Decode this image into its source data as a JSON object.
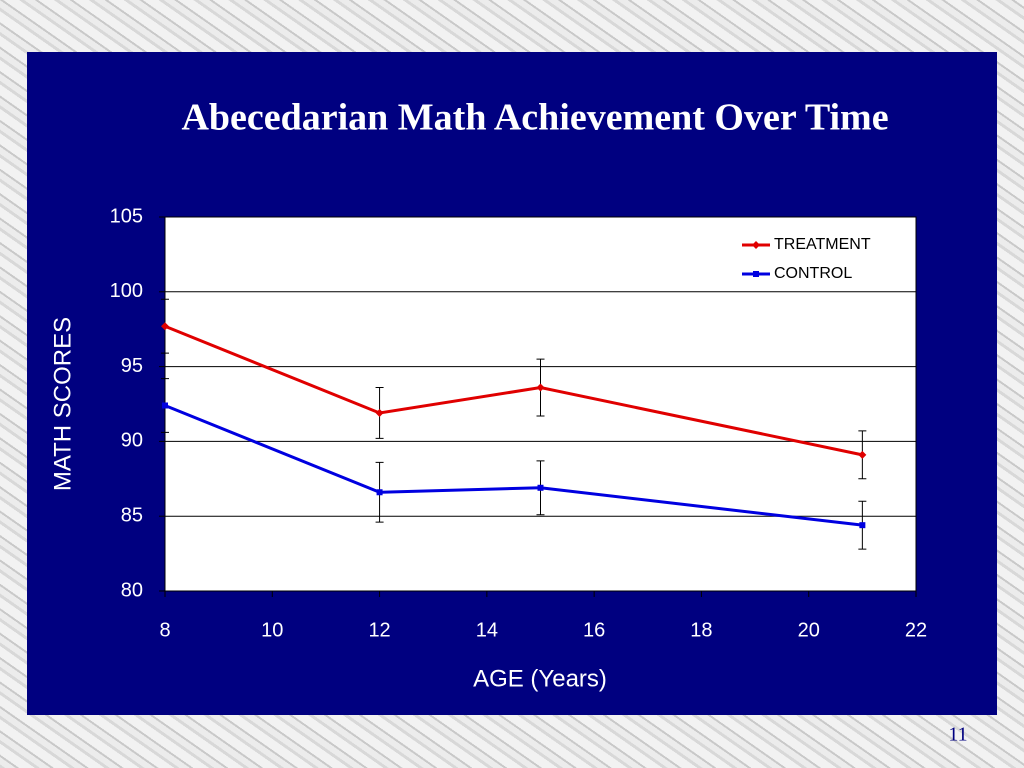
{
  "chart_data": {
    "type": "line",
    "title": "Abecedarian Math Achievement Over Time",
    "xlabel": "AGE (Years)",
    "ylabel": "MATH SCORES",
    "x": [
      8,
      12,
      15,
      21
    ],
    "series": [
      {
        "name": "TREATMENT",
        "color": "#e00000",
        "marker": "diamond",
        "values": [
          97.7,
          91.9,
          93.6,
          89.1
        ],
        "errors": [
          1.8,
          1.7,
          1.9,
          1.6
        ]
      },
      {
        "name": "CONTROL",
        "color": "#0000e0",
        "marker": "square",
        "values": [
          92.4,
          86.6,
          86.9,
          84.4
        ],
        "errors": [
          1.8,
          2.0,
          1.8,
          1.6
        ]
      }
    ],
    "xlim": [
      8,
      22
    ],
    "xticks": [
      8,
      10,
      12,
      14,
      16,
      18,
      20,
      22
    ],
    "ylim": [
      80,
      105
    ],
    "yticks": [
      80,
      85,
      90,
      95,
      100,
      105
    ],
    "grid": true,
    "legend": "upper right"
  },
  "slide": {
    "page_number": "11"
  }
}
